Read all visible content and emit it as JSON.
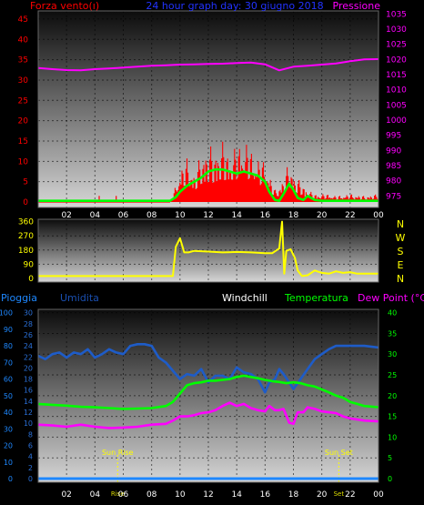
{
  "chart_data": [
    {
      "type": "line",
      "title": "24 hour graph day: 30 giugno 2018",
      "left_axis_label": "Forza vento(ı)",
      "right_axis_label": "Pressione",
      "x_tick_labels": [
        "02",
        "04",
        "06",
        "08",
        "10",
        "12",
        "14",
        "16",
        "18",
        "20",
        "22",
        "00"
      ],
      "left_ticks": [
        0,
        5,
        10,
        15,
        20,
        25,
        30,
        35,
        40,
        45
      ],
      "left_ylim": [
        0,
        47
      ],
      "right_ticks": [
        975,
        980,
        985,
        990,
        995,
        1000,
        1005,
        1010,
        1015,
        1020,
        1025,
        1030,
        1035
      ],
      "right_ylim": [
        973,
        1036
      ],
      "series": [
        {
          "role": "pressure",
          "axis": "right",
          "color": "#ff00ff",
          "x": [
            0,
            1,
            2,
            3,
            4,
            5,
            6,
            7,
            8,
            9,
            10,
            11,
            12,
            13,
            14,
            15,
            16,
            17,
            18,
            19,
            20,
            21,
            22,
            23,
            24
          ],
          "y": [
            1017.2,
            1016.8,
            1016.5,
            1016.4,
            1016.8,
            1017,
            1017.3,
            1017.6,
            1017.9,
            1018.1,
            1018.3,
            1018.4,
            1018.5,
            1018.6,
            1018.8,
            1019,
            1018.4,
            1016.4,
            1017.6,
            1017.9,
            1018.3,
            1018.7,
            1019.4,
            1020,
            1020.1
          ]
        },
        {
          "role": "wind_gust",
          "axis": "left",
          "color": "#ff0000",
          "x": [
            0,
            5.5,
            9.3,
            9.6,
            10,
            10.5,
            11,
            11.5,
            12,
            12.5,
            13,
            13.5,
            14,
            14.5,
            15,
            15.5,
            16,
            16.3,
            16.7,
            17,
            17.3,
            17.7,
            18,
            18.5,
            19,
            19.5,
            20,
            20.5,
            21,
            22,
            23,
            24
          ],
          "y": [
            0,
            0.5,
            0,
            3,
            8,
            11,
            7,
            12,
            14,
            13,
            15,
            12,
            14,
            16,
            13,
            11,
            10,
            7,
            3,
            4,
            6,
            10,
            7,
            5,
            3,
            2,
            2,
            2,
            1.5,
            2,
            1.5,
            2
          ]
        },
        {
          "role": "wind_average",
          "axis": "left",
          "color": "#00ff00",
          "x": [
            0,
            9.3,
            9.7,
            10,
            10.5,
            11,
            11.5,
            12,
            12.5,
            13,
            13.5,
            14,
            14.5,
            15,
            15.5,
            16,
            16.3,
            16.7,
            17,
            17.3,
            17.7,
            18,
            18.3,
            18.7,
            19,
            19.5,
            20,
            21,
            22,
            23,
            24
          ],
          "y": [
            0.3,
            0.3,
            1.2,
            2.5,
            4,
            5,
            6,
            7.5,
            8,
            8,
            7.5,
            7,
            7.5,
            7,
            6.5,
            5,
            2.5,
            0.5,
            0.3,
            2,
            4.5,
            3,
            1,
            0.5,
            1.5,
            0.5,
            0.3,
            0.3,
            0.3,
            0.3,
            0.3
          ]
        }
      ]
    },
    {
      "type": "line",
      "left_ticks": [
        0,
        90,
        180,
        270,
        360
      ],
      "left_ylim": [
        0,
        375
      ],
      "right_labels": [
        "N",
        "W",
        "S",
        "E",
        "N"
      ],
      "series": [
        {
          "role": "wind_direction",
          "color": "#ffff00",
          "x": [
            0,
            9.5,
            9.7,
            10,
            10.3,
            10.6,
            11,
            12,
            13,
            14,
            15,
            16,
            16.5,
            17,
            17.2,
            17.35,
            17.5,
            17.8,
            18.1,
            18.3,
            18.6,
            19,
            19.5,
            20,
            20.5,
            21,
            21.5,
            22,
            22.5,
            23,
            24
          ],
          "y": [
            15,
            15,
            200,
            255,
            165,
            165,
            175,
            170,
            165,
            168,
            165,
            160,
            160,
            190,
            360,
            30,
            175,
            185,
            130,
            50,
            15,
            20,
            50,
            35,
            30,
            45,
            35,
            40,
            30,
            30,
            30
          ]
        }
      ]
    },
    {
      "type": "line",
      "labels": {
        "rain": "Pioggia",
        "humidity": "Umidita",
        "windchill": "Windchill",
        "temperature": "Temperatura",
        "dewpoint": "Dew Point (°C)"
      },
      "rain_ticks": [
        0,
        10,
        20,
        30,
        40,
        50,
        60,
        70,
        80,
        90,
        100
      ],
      "rain_ylim": [
        0,
        102
      ],
      "humidity_ticks": [
        0,
        2,
        4,
        6,
        8,
        10,
        12,
        14,
        16,
        18,
        20,
        22,
        24,
        26,
        28,
        30
      ],
      "humidity_ylim": [
        0,
        30.6
      ],
      "temp_ticks": [
        0,
        5,
        10,
        15,
        20,
        25,
        30,
        35,
        40
      ],
      "temp_ylim": [
        0,
        40.8
      ],
      "sun_rise_label": "Sun Rise",
      "sun_set_label": "Sun Set",
      "sun_rise_hour": 5.6,
      "sun_set_hour": 21.2,
      "series": [
        {
          "role": "humidity",
          "axis": "rain",
          "color": "#1e5cc8",
          "x": [
            0,
            0.5,
            1,
            1.5,
            2,
            2.5,
            3,
            3.5,
            4,
            4.5,
            5,
            5.5,
            6,
            6.5,
            7,
            7.5,
            8,
            8.5,
            9,
            9.5,
            10,
            10.5,
            11,
            11.5,
            12,
            12.5,
            13,
            13.5,
            14,
            14.5,
            15,
            15.5,
            16,
            16.3,
            16.7,
            17,
            17.3,
            17.7,
            18,
            18.5,
            19,
            19.5,
            20,
            20.5,
            21,
            21.5,
            22,
            23,
            24
          ],
          "y": [
            74,
            72,
            75,
            76,
            73,
            76,
            75,
            78,
            73,
            75,
            78,
            76,
            75,
            80,
            81,
            81,
            80,
            73,
            70,
            65,
            60,
            63,
            62,
            66,
            58,
            62,
            62,
            60,
            67,
            64,
            63,
            60,
            52,
            58,
            60,
            66,
            63,
            58,
            54,
            60,
            66,
            72,
            75,
            78,
            80,
            80,
            80,
            80,
            79
          ]
        },
        {
          "role": "temperature",
          "axis": "temp",
          "color": "#00ff00",
          "x": [
            0,
            1,
            2,
            3,
            4,
            5,
            6,
            7,
            8,
            9,
            9.5,
            10,
            10.5,
            11,
            11.5,
            12,
            12.5,
            13,
            13.5,
            14,
            14.5,
            15,
            15.5,
            16,
            16.5,
            17,
            17.5,
            18,
            18.5,
            19,
            19.5,
            20,
            20.5,
            21,
            21.5,
            22,
            22.5,
            23,
            24
          ],
          "y": [
            18,
            17.8,
            17.6,
            17.3,
            17.2,
            17,
            16.8,
            16.9,
            17,
            17.5,
            18.5,
            20.5,
            22.5,
            23,
            23.2,
            23.6,
            23.6,
            23.8,
            24,
            24.5,
            24.8,
            24.5,
            24.2,
            23.8,
            23.5,
            23.3,
            23,
            23.2,
            23,
            22.5,
            22.2,
            21.5,
            20.8,
            20,
            19.5,
            18.5,
            18,
            17.5,
            17.2
          ]
        },
        {
          "role": "dewpoint",
          "axis": "temp",
          "color": "#ff00ff",
          "x": [
            0,
            1,
            2,
            3,
            4,
            5,
            6,
            7,
            8,
            9,
            9.5,
            10,
            10.5,
            11,
            11.5,
            12,
            12.5,
            13,
            13.5,
            14,
            14.5,
            15,
            15.5,
            16,
            16.3,
            16.7,
            17,
            17.3,
            17.7,
            18,
            18.3,
            18.7,
            19,
            19.5,
            20,
            20.5,
            21,
            21.5,
            22,
            23,
            24
          ],
          "y": [
            13,
            12.8,
            12.5,
            13,
            12.5,
            12.2,
            12.3,
            12.5,
            13,
            13.2,
            14,
            15,
            15,
            15.3,
            15.8,
            16,
            16.5,
            17.5,
            18.3,
            17.5,
            18,
            17,
            16.5,
            16.2,
            17.5,
            16.5,
            16.5,
            16.8,
            13.5,
            13.2,
            16,
            16,
            17.2,
            16.8,
            16.2,
            16,
            15.8,
            15,
            14.5,
            14,
            13.8
          ]
        },
        {
          "role": "rain",
          "axis": "rain",
          "color": "#1e88ff",
          "x": [
            0,
            24
          ],
          "y": [
            0,
            0
          ]
        }
      ]
    }
  ]
}
